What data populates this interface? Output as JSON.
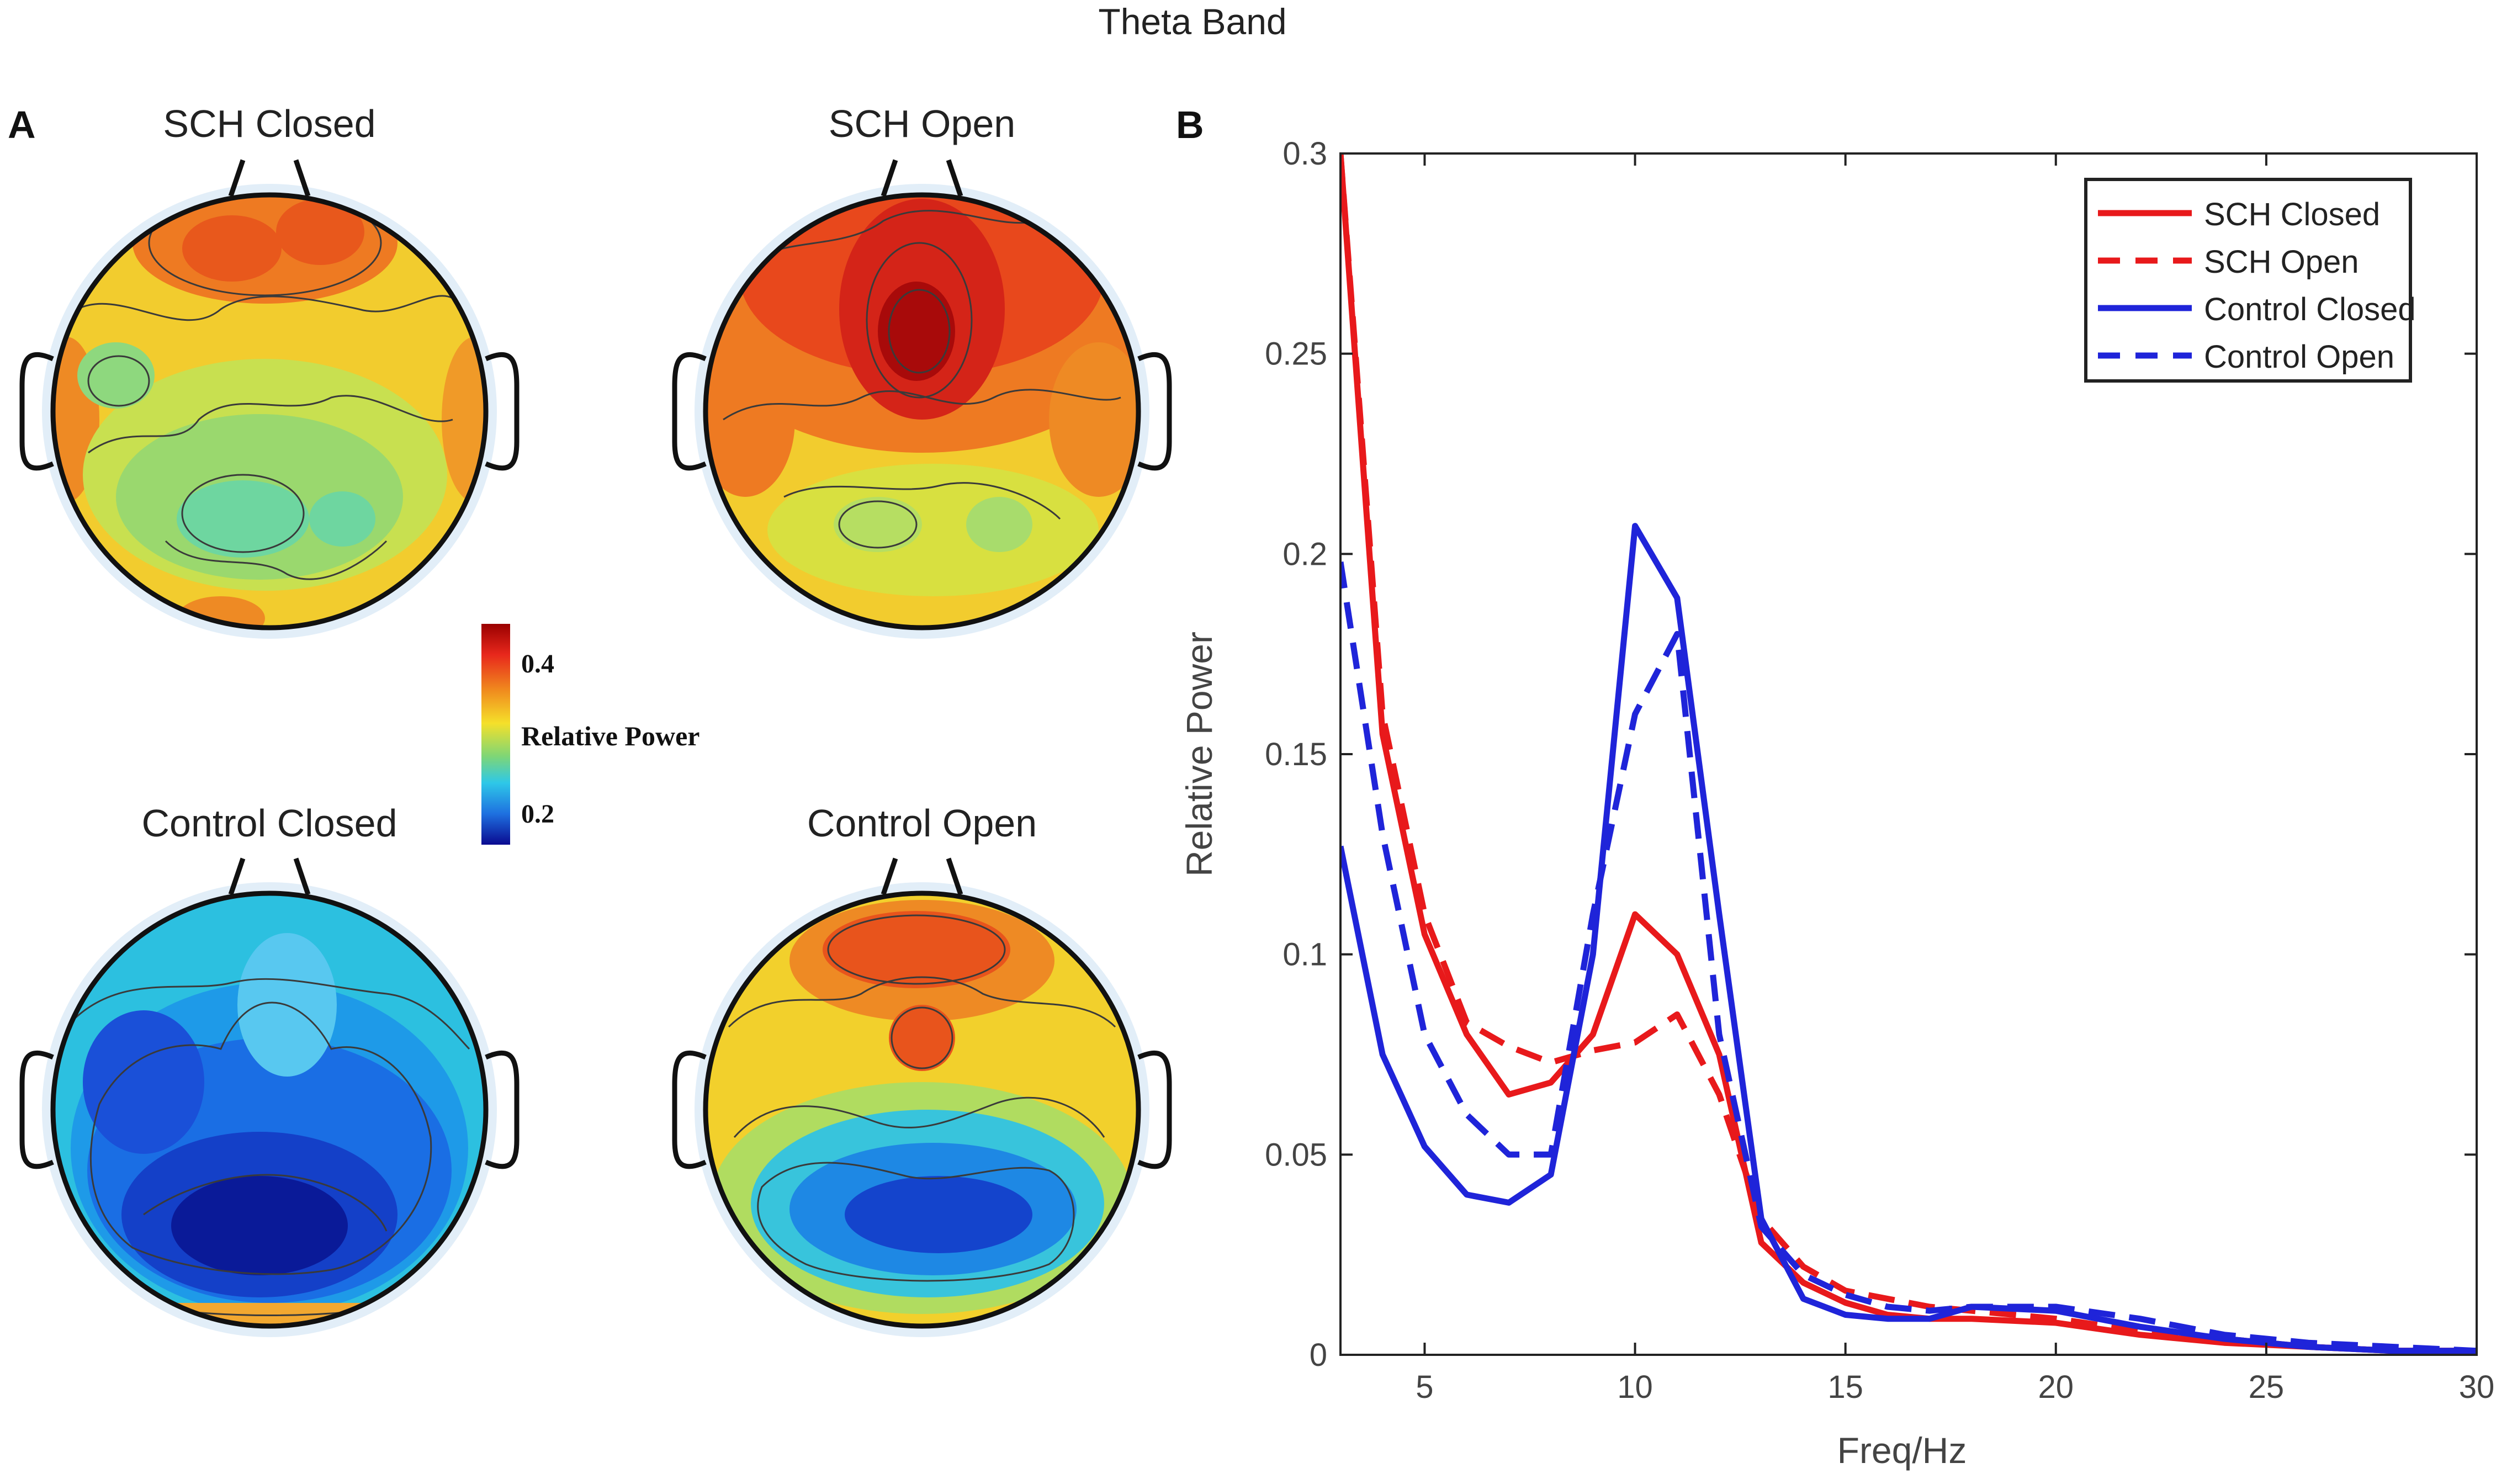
{
  "figure": {
    "title": "Theta Band",
    "panel_a_label": "A",
    "panel_b_label": "B"
  },
  "topomaps": [
    {
      "id": "sch-closed",
      "title": "SCH Closed",
      "pattern": "warm-frontal"
    },
    {
      "id": "sch-open",
      "title": "SCH Open",
      "pattern": "hot-frontal"
    },
    {
      "id": "control-closed",
      "title": "Control Closed",
      "pattern": "cold-posterior"
    },
    {
      "id": "control-open",
      "title": "Control Open",
      "pattern": "mixed"
    }
  ],
  "colorbar": {
    "label": "Relative Power",
    "tick_high": "0.4",
    "tick_low": "0.2",
    "colors": [
      "#9a0000",
      "#e8281c",
      "#f08a1e",
      "#f5e02a",
      "#7ed676",
      "#2ec8e8",
      "#1e70e0",
      "#0a0a90"
    ]
  },
  "chart_data": {
    "type": "line",
    "xlabel": "Freq/Hz",
    "ylabel": "Relative Power",
    "xlim": [
      3,
      30
    ],
    "ylim": [
      0,
      0.3
    ],
    "xticks": [
      5,
      10,
      15,
      20,
      25,
      30
    ],
    "yticks": [
      0,
      0.05,
      0.1,
      0.15,
      0.2,
      0.25,
      0.3
    ],
    "ytick_labels": [
      "0",
      "0.05",
      "0.1",
      "0.15",
      "0.2",
      "0.25",
      "0.3"
    ],
    "legend_position": "top-right",
    "series": [
      {
        "name": "SCH Closed",
        "color": "#e8191b",
        "dash": "solid",
        "x": [
          3,
          4,
          5,
          6,
          7,
          8,
          9,
          10,
          11,
          12,
          13,
          14,
          15,
          16,
          17,
          18,
          20,
          22,
          24,
          26,
          28,
          30
        ],
        "y": [
          0.3,
          0.155,
          0.105,
          0.08,
          0.065,
          0.068,
          0.08,
          0.11,
          0.1,
          0.075,
          0.028,
          0.018,
          0.013,
          0.01,
          0.009,
          0.009,
          0.008,
          0.005,
          0.003,
          0.002,
          0.001,
          0.001
        ]
      },
      {
        "name": "SCH Open",
        "color": "#e8191b",
        "dash": "dashed",
        "x": [
          3,
          4,
          5,
          6,
          7,
          8,
          9,
          10,
          11,
          12,
          13,
          14,
          15,
          16,
          17,
          18,
          20,
          22,
          24,
          26,
          28,
          30
        ],
        "y": [
          0.3,
          0.16,
          0.11,
          0.083,
          0.077,
          0.073,
          0.076,
          0.078,
          0.085,
          0.065,
          0.034,
          0.022,
          0.016,
          0.014,
          0.012,
          0.011,
          0.009,
          0.006,
          0.004,
          0.002,
          0.001,
          0.001
        ]
      },
      {
        "name": "Control Closed",
        "color": "#1f24d9",
        "dash": "solid",
        "x": [
          3,
          4,
          5,
          6,
          7,
          8,
          9,
          10,
          11,
          12,
          13,
          14,
          15,
          16,
          17,
          18,
          20,
          22,
          24,
          26,
          28,
          30
        ],
        "y": [
          0.127,
          0.075,
          0.052,
          0.04,
          0.038,
          0.045,
          0.1,
          0.207,
          0.189,
          0.11,
          0.034,
          0.014,
          0.01,
          0.009,
          0.009,
          0.012,
          0.011,
          0.007,
          0.004,
          0.002,
          0.001,
          0.001
        ]
      },
      {
        "name": "Control Open",
        "color": "#1f24d9",
        "dash": "dashed",
        "x": [
          3,
          4,
          5,
          6,
          7,
          8,
          9,
          10,
          11,
          12,
          13,
          14,
          15,
          16,
          17,
          18,
          20,
          22,
          24,
          26,
          28,
          30
        ],
        "y": [
          0.198,
          0.13,
          0.08,
          0.06,
          0.05,
          0.05,
          0.11,
          0.16,
          0.18,
          0.08,
          0.032,
          0.02,
          0.015,
          0.012,
          0.011,
          0.012,
          0.012,
          0.009,
          0.005,
          0.003,
          0.002,
          0.001
        ]
      }
    ]
  }
}
